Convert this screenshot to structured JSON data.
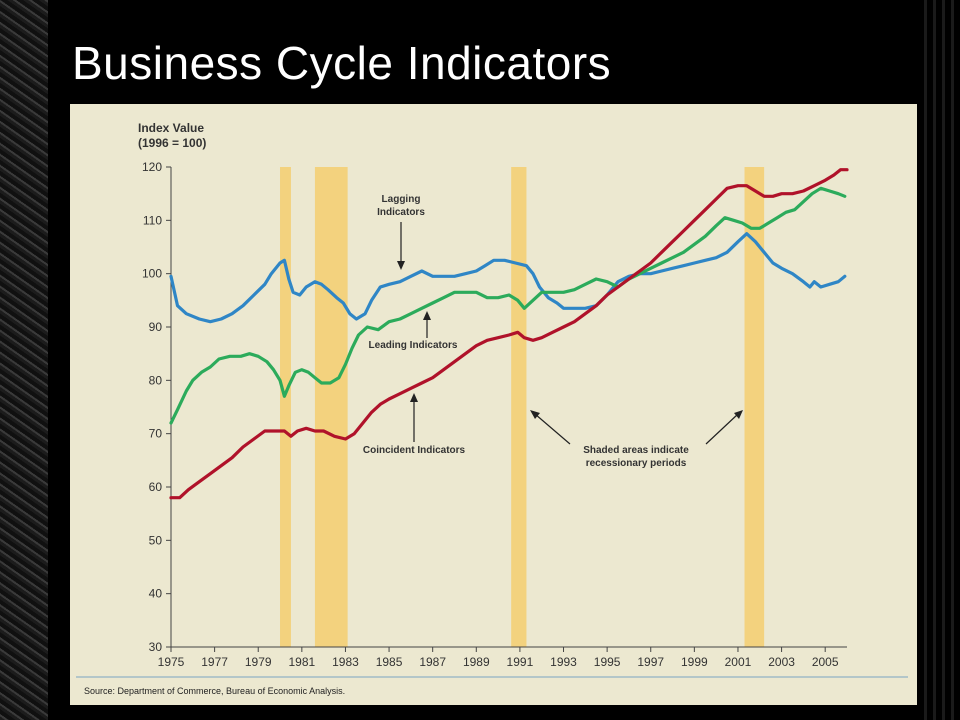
{
  "title": "Business Cycle Indicators",
  "chart_data": {
    "type": "line",
    "ylabel_line1": "Index Value",
    "ylabel_line2": "(1996 = 100)",
    "ylim": [
      30,
      120
    ],
    "xlim": [
      1975,
      2006
    ],
    "yticks": [
      30,
      40,
      50,
      60,
      70,
      80,
      90,
      100,
      110,
      120
    ],
    "xticks": [
      "1975",
      "1977",
      "1979",
      "1981",
      "1983",
      "1985",
      "1987",
      "1989",
      "1991",
      "1993",
      "1995",
      "1997",
      "1999",
      "2001",
      "2003",
      "2005"
    ],
    "recessions": [
      [
        1980.0,
        1980.5
      ],
      [
        1981.6,
        1983.1
      ],
      [
        1990.6,
        1991.3
      ],
      [
        2001.3,
        2002.2
      ]
    ],
    "recession_color": "#f3d27e",
    "series": [
      {
        "name": "Lagging Indicators",
        "color": "#2f86c6",
        "points": [
          [
            1975.0,
            99.5
          ],
          [
            1975.3,
            94
          ],
          [
            1975.7,
            92.5
          ],
          [
            1976.3,
            91.5
          ],
          [
            1976.8,
            91
          ],
          [
            1977.3,
            91.5
          ],
          [
            1977.8,
            92.5
          ],
          [
            1978.3,
            94
          ],
          [
            1978.8,
            96
          ],
          [
            1979.3,
            98
          ],
          [
            1979.6,
            100
          ],
          [
            1980.0,
            102
          ],
          [
            1980.2,
            102.5
          ],
          [
            1980.4,
            99
          ],
          [
            1980.6,
            96.5
          ],
          [
            1980.9,
            96
          ],
          [
            1981.2,
            97.5
          ],
          [
            1981.6,
            98.5
          ],
          [
            1981.9,
            98
          ],
          [
            1982.2,
            97
          ],
          [
            1982.6,
            95.5
          ],
          [
            1982.9,
            94.5
          ],
          [
            1983.2,
            92.5
          ],
          [
            1983.5,
            91.5
          ],
          [
            1983.9,
            92.5
          ],
          [
            1984.2,
            95
          ],
          [
            1984.6,
            97.5
          ],
          [
            1985.0,
            98
          ],
          [
            1985.5,
            98.5
          ],
          [
            1986.0,
            99.5
          ],
          [
            1986.5,
            100.5
          ],
          [
            1987.0,
            99.5
          ],
          [
            1987.5,
            99.5
          ],
          [
            1988.0,
            99.5
          ],
          [
            1988.5,
            100
          ],
          [
            1989.0,
            100.5
          ],
          [
            1989.4,
            101.5
          ],
          [
            1989.8,
            102.5
          ],
          [
            1990.3,
            102.5
          ],
          [
            1990.8,
            102
          ],
          [
            1991.3,
            101.5
          ],
          [
            1991.6,
            100
          ],
          [
            1991.9,
            97.5
          ],
          [
            1992.3,
            95.5
          ],
          [
            1992.7,
            94.5
          ],
          [
            1993.0,
            93.5
          ],
          [
            1993.5,
            93.5
          ],
          [
            1994.0,
            93.5
          ],
          [
            1994.5,
            94
          ],
          [
            1995.0,
            96
          ],
          [
            1995.5,
            98.5
          ],
          [
            1996.0,
            99.5
          ],
          [
            1996.5,
            100
          ],
          [
            1997.0,
            100
          ],
          [
            1997.5,
            100.5
          ],
          [
            1998.0,
            101
          ],
          [
            1998.5,
            101.5
          ],
          [
            1999.0,
            102
          ],
          [
            1999.5,
            102.5
          ],
          [
            2000.0,
            103
          ],
          [
            2000.5,
            104
          ],
          [
            2001.0,
            106
          ],
          [
            2001.4,
            107.5
          ],
          [
            2001.8,
            106
          ],
          [
            2002.2,
            104
          ],
          [
            2002.6,
            102
          ],
          [
            2003.0,
            101
          ],
          [
            2003.5,
            100
          ],
          [
            2004.0,
            98.5
          ],
          [
            2004.3,
            97.5
          ],
          [
            2004.5,
            98.5
          ],
          [
            2004.8,
            97.5
          ],
          [
            2005.2,
            98
          ],
          [
            2005.6,
            98.5
          ],
          [
            2005.9,
            99.5
          ]
        ]
      },
      {
        "name": "Leading Indicators",
        "color": "#2cab5b",
        "points": [
          [
            1975.0,
            72
          ],
          [
            1975.3,
            74.5
          ],
          [
            1975.7,
            78
          ],
          [
            1976.0,
            80
          ],
          [
            1976.4,
            81.5
          ],
          [
            1976.8,
            82.5
          ],
          [
            1977.2,
            84
          ],
          [
            1977.7,
            84.5
          ],
          [
            1978.2,
            84.5
          ],
          [
            1978.6,
            85
          ],
          [
            1979.0,
            84.5
          ],
          [
            1979.4,
            83.5
          ],
          [
            1979.7,
            82
          ],
          [
            1980.0,
            80
          ],
          [
            1980.2,
            77
          ],
          [
            1980.4,
            79
          ],
          [
            1980.7,
            81.5
          ],
          [
            1981.0,
            82
          ],
          [
            1981.3,
            81.5
          ],
          [
            1981.6,
            80.5
          ],
          [
            1981.9,
            79.5
          ],
          [
            1982.3,
            79.5
          ],
          [
            1982.7,
            80.5
          ],
          [
            1983.0,
            83
          ],
          [
            1983.3,
            86
          ],
          [
            1983.6,
            88.5
          ],
          [
            1984.0,
            90
          ],
          [
            1984.5,
            89.5
          ],
          [
            1985.0,
            91
          ],
          [
            1985.5,
            91.5
          ],
          [
            1986.0,
            92.5
          ],
          [
            1986.5,
            93.5
          ],
          [
            1987.0,
            94.5
          ],
          [
            1987.5,
            95.5
          ],
          [
            1988.0,
            96.5
          ],
          [
            1988.5,
            96.5
          ],
          [
            1989.0,
            96.5
          ],
          [
            1989.5,
            95.5
          ],
          [
            1990.0,
            95.5
          ],
          [
            1990.5,
            96
          ],
          [
            1990.9,
            95
          ],
          [
            1991.2,
            93.5
          ],
          [
            1991.6,
            95
          ],
          [
            1992.0,
            96.5
          ],
          [
            1992.5,
            96.5
          ],
          [
            1993.0,
            96.5
          ],
          [
            1993.5,
            97
          ],
          [
            1994.0,
            98
          ],
          [
            1994.5,
            99
          ],
          [
            1995.0,
            98.5
          ],
          [
            1995.5,
            97.5
          ],
          [
            1996.0,
            99
          ],
          [
            1996.5,
            100
          ],
          [
            1997.0,
            101
          ],
          [
            1997.5,
            102
          ],
          [
            1998.0,
            103
          ],
          [
            1998.5,
            104
          ],
          [
            1999.0,
            105.5
          ],
          [
            1999.5,
            107
          ],
          [
            2000.0,
            109
          ],
          [
            2000.4,
            110.5
          ],
          [
            2000.8,
            110
          ],
          [
            2001.2,
            109.5
          ],
          [
            2001.6,
            108.5
          ],
          [
            2002.0,
            108.5
          ],
          [
            2002.4,
            109.5
          ],
          [
            2002.8,
            110.5
          ],
          [
            2003.2,
            111.5
          ],
          [
            2003.6,
            112
          ],
          [
            2004.0,
            113.5
          ],
          [
            2004.4,
            115
          ],
          [
            2004.8,
            116
          ],
          [
            2005.2,
            115.5
          ],
          [
            2005.6,
            115
          ],
          [
            2005.9,
            114.5
          ]
        ]
      },
      {
        "name": "Coincident Indicators",
        "color": "#b0122a",
        "points": [
          [
            1975.0,
            58
          ],
          [
            1975.4,
            58
          ],
          [
            1975.8,
            59.5
          ],
          [
            1976.3,
            61
          ],
          [
            1976.8,
            62.5
          ],
          [
            1977.3,
            64
          ],
          [
            1977.8,
            65.5
          ],
          [
            1978.3,
            67.5
          ],
          [
            1978.8,
            69
          ],
          [
            1979.3,
            70.5
          ],
          [
            1979.8,
            70.5
          ],
          [
            1980.2,
            70.5
          ],
          [
            1980.5,
            69.5
          ],
          [
            1980.8,
            70.5
          ],
          [
            1981.2,
            71
          ],
          [
            1981.6,
            70.5
          ],
          [
            1982.0,
            70.5
          ],
          [
            1982.5,
            69.5
          ],
          [
            1983.0,
            69
          ],
          [
            1983.4,
            70
          ],
          [
            1983.8,
            72
          ],
          [
            1984.2,
            74
          ],
          [
            1984.6,
            75.5
          ],
          [
            1985.0,
            76.5
          ],
          [
            1985.5,
            77.5
          ],
          [
            1986.0,
            78.5
          ],
          [
            1986.5,
            79.5
          ],
          [
            1987.0,
            80.5
          ],
          [
            1987.5,
            82
          ],
          [
            1988.0,
            83.5
          ],
          [
            1988.5,
            85
          ],
          [
            1989.0,
            86.5
          ],
          [
            1989.5,
            87.5
          ],
          [
            1990.0,
            88
          ],
          [
            1990.5,
            88.5
          ],
          [
            1990.9,
            89
          ],
          [
            1991.2,
            88
          ],
          [
            1991.6,
            87.5
          ],
          [
            1992.0,
            88
          ],
          [
            1992.5,
            89
          ],
          [
            1993.0,
            90
          ],
          [
            1993.5,
            91
          ],
          [
            1994.0,
            92.5
          ],
          [
            1994.5,
            94
          ],
          [
            1995.0,
            96
          ],
          [
            1995.5,
            97.5
          ],
          [
            1996.0,
            99
          ],
          [
            1996.5,
            100.5
          ],
          [
            1997.0,
            102
          ],
          [
            1997.5,
            104
          ],
          [
            1998.0,
            106
          ],
          [
            1998.5,
            108
          ],
          [
            1999.0,
            110
          ],
          [
            1999.5,
            112
          ],
          [
            2000.0,
            114
          ],
          [
            2000.5,
            116
          ],
          [
            2001.0,
            116.5
          ],
          [
            2001.4,
            116.5
          ],
          [
            2001.8,
            115.5
          ],
          [
            2002.2,
            114.5
          ],
          [
            2002.6,
            114.5
          ],
          [
            2003.0,
            115
          ],
          [
            2003.5,
            115
          ],
          [
            2004.0,
            115.5
          ],
          [
            2004.5,
            116.5
          ],
          [
            2005.0,
            117.5
          ],
          [
            2005.4,
            118.5
          ],
          [
            2005.7,
            119.5
          ],
          [
            2006.0,
            119.5
          ]
        ]
      }
    ],
    "annotations": {
      "lagging_line1": "Lagging",
      "lagging_line2": "Indicators",
      "leading": "Leading Indicators",
      "coincident": "Coincident Indicators",
      "shaded_line1": "Shaded areas indicate",
      "shaded_line2": "recessionary periods"
    },
    "source": "Source: Department of Commerce, Bureau of Economic Analysis."
  }
}
